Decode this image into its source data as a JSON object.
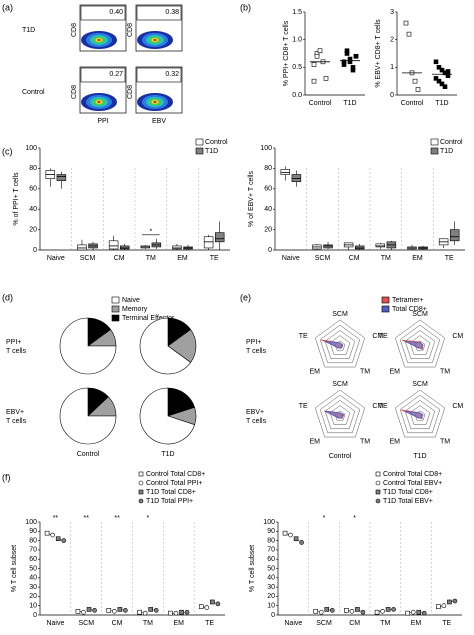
{
  "chart_data": [
    {
      "type": "flow",
      "panel": "(a)",
      "rows": [
        "T1D",
        "Control"
      ],
      "columns": [
        "PPI",
        "EBV"
      ],
      "ylabel": "CD8",
      "values": [
        [
          0.4,
          0.38
        ],
        [
          0.27,
          0.32
        ]
      ],
      "value_labels": [
        [
          "0.40",
          "0.38"
        ],
        [
          "0.27",
          "0.32"
        ]
      ]
    },
    {
      "type": "dot",
      "panel": "(b)",
      "ylabel": "% PPI+ CD8+ T cells",
      "categories": [
        "Control",
        "T1D"
      ],
      "values": [
        [
          0.55,
          0.75,
          0.8,
          0.6,
          0.3,
          0.25,
          0.7
        ],
        [
          0.6,
          0.75,
          0.65,
          0.5,
          0.7,
          0.55,
          0.8,
          0.6,
          0.45,
          0.7
        ]
      ],
      "medians": [
        0.6,
        0.62
      ],
      "ylim": [
        0,
        1.5
      ],
      "yticks": [
        {
          "value": 0,
          "label": "0.0"
        },
        0.5,
        {
          "value": 1,
          "label": "1.0"
        },
        1.5
      ]
    },
    {
      "type": "dot",
      "ylabel": "% EBV+ CD8+ T cells",
      "categories": [
        "Control",
        "T1D"
      ],
      "values": [
        [
          2.6,
          2.2,
          0.8,
          0.5,
          0.2
        ],
        [
          1.2,
          1.0,
          0.9,
          0.8,
          0.7,
          0.6,
          0.5,
          0.4,
          0.3,
          0.85
        ]
      ],
      "medians": [
        0.8,
        0.75
      ],
      "ylim": [
        0,
        3
      ],
      "yticks": [
        0,
        1,
        2,
        3
      ]
    },
    {
      "type": "box",
      "panel": "(c)",
      "ylabel": "% of PPI+ T cells",
      "categories": [
        "Naive",
        "SCM",
        "CM",
        "TM",
        "EM",
        "TE"
      ],
      "legend": "upper right",
      "series": [
        {
          "name": "Control",
          "color": "#ffffff",
          "boxes": [
            [
              62,
              70,
              74,
              78,
              80
            ],
            [
              0,
              0,
              2,
              5,
              10
            ],
            [
              0,
              1,
              4,
              9,
              14
            ],
            [
              1,
              2,
              3,
              4,
              5
            ],
            [
              0,
              1,
              2,
              4,
              6
            ],
            [
              0,
              2,
              8,
              13,
              15
            ]
          ]
        },
        {
          "name": "T1D",
          "color": "#808080",
          "boxes": [
            [
              60,
              68,
              72,
              74,
              77
            ],
            [
              0,
              2,
              4,
              6,
              8
            ],
            [
              0,
              1,
              2,
              4,
              6
            ],
            [
              1,
              3,
              5,
              7,
              11
            ],
            [
              0,
              1,
              2,
              3,
              5
            ],
            [
              0,
              8,
              11,
              17,
              28
            ]
          ]
        }
      ],
      "annotations": [
        null,
        null,
        null,
        "*",
        null,
        null
      ],
      "ylim": [
        0,
        100
      ],
      "yticks": [
        0,
        20,
        40,
        60,
        80,
        100
      ]
    },
    {
      "type": "box",
      "ylabel": "% of EBV+ T cells",
      "categories": [
        "Naive",
        "SCM",
        "CM",
        "TM",
        "EM",
        "TE"
      ],
      "legend": "upper right",
      "series": [
        {
          "name": "Control",
          "color": "#ffffff",
          "boxes": [
            [
              68,
              74,
              76,
              79,
              82
            ],
            [
              0,
              1,
              3,
              5,
              6
            ],
            [
              0,
              3,
              5,
              7,
              7
            ],
            [
              1,
              3,
              4,
              6,
              7
            ],
            [
              0,
              1,
              2,
              3,
              5
            ],
            [
              2,
              5,
              8,
              11,
              11
            ]
          ]
        },
        {
          "name": "T1D",
          "color": "#808080",
          "boxes": [
            [
              62,
              67,
              70,
              74,
              78
            ],
            [
              1,
              2,
              4,
              5,
              8
            ],
            [
              0,
              1,
              2,
              4,
              6
            ],
            [
              0,
              2,
              5,
              8,
              9
            ],
            [
              0,
              1,
              2,
              3,
              4
            ],
            [
              5,
              9,
              13,
              20,
              28
            ]
          ]
        }
      ],
      "annotations": [
        null,
        null,
        null,
        null,
        null,
        null
      ],
      "ylim": [
        0,
        100
      ],
      "yticks": [
        0,
        20,
        40,
        60,
        80,
        100
      ]
    },
    {
      "type": "pie",
      "panel": "(d)",
      "names": [
        "Naive",
        "Memory",
        "Terminal Effector"
      ],
      "colors": [
        "#ffffff",
        "#a0a0a0",
        "#000000"
      ],
      "rows": [
        [
          "PPI+",
          "T cells"
        ],
        [
          "EBV+",
          "T cells"
        ]
      ],
      "columns": [
        "Control",
        "T1D"
      ],
      "values": [
        [
          [
            75,
            10,
            15
          ],
          [
            65,
            20,
            15
          ]
        ],
        [
          [
            75,
            12,
            13
          ],
          [
            70,
            10,
            20
          ]
        ]
      ]
    },
    {
      "type": "radar",
      "panel": "(e)",
      "axes": [
        "SCM",
        "CM",
        "TM",
        "EM",
        "TE"
      ],
      "rows": [
        [
          "PPI+",
          "T cells"
        ],
        [
          "EBV+",
          "T cells"
        ]
      ],
      "columns": [
        "Control",
        "T1D"
      ],
      "rlim": [
        0,
        50
      ],
      "rticks": [
        10,
        20,
        30,
        40,
        50
      ],
      "series": [
        {
          "name": "Tetramer+",
          "color": "#e05050",
          "values": [
            [
              6,
              4,
              4,
              4,
              38
            ],
            [
              8,
              6,
              8,
              4,
              36
            ],
            [
              6,
              8,
              6,
              4,
              32
            ],
            [
              6,
              4,
              7,
              4,
              38
            ]
          ]
        },
        {
          "name": "Total CD8+",
          "color": "#5060c0",
          "values": [
            [
              6,
              6,
              5,
              5,
              30
            ],
            [
              6,
              6,
              5,
              5,
              30
            ],
            [
              6,
              6,
              5,
              5,
              30
            ],
            [
              6,
              6,
              5,
              5,
              30
            ]
          ]
        }
      ]
    },
    {
      "type": "dotline",
      "panel": "(f)",
      "ylabel": "% T cell subset",
      "categories": [
        "Naive",
        "SCM",
        "CM",
        "TM",
        "EM",
        "TE"
      ],
      "series": [
        {
          "name": "Control Total CD8+",
          "marker": "square",
          "color": "#ffffff",
          "values": [
            88,
            4,
            5,
            3,
            2,
            9
          ]
        },
        {
          "name": "Control Total PPI+",
          "marker": "circle",
          "color": "#ffffff",
          "values": [
            86,
            3,
            4,
            2,
            2,
            8
          ]
        },
        {
          "name": "T1D Total CD8+",
          "marker": "square",
          "color": "#808080",
          "values": [
            82,
            6,
            6,
            6,
            3,
            14
          ]
        },
        {
          "name": "T1D Total PPI+",
          "marker": "circle",
          "color": "#808080",
          "values": [
            80,
            5,
            5,
            5,
            3,
            12
          ]
        }
      ],
      "annotations": [
        "**",
        "**",
        "**",
        "*",
        null,
        null
      ],
      "ylim": [
        0,
        100
      ],
      "yticks": [
        0,
        10,
        20,
        30,
        40,
        50,
        60,
        70,
        80,
        90,
        100
      ]
    },
    {
      "type": "dotline",
      "ylabel": "% T cell subset",
      "categories": [
        "Naive",
        "SCM",
        "CM",
        "TM",
        "EM",
        "TE"
      ],
      "series": [
        {
          "name": "Control Total CD8+",
          "marker": "square",
          "color": "#ffffff",
          "values": [
            88,
            4,
            5,
            3,
            2,
            9
          ]
        },
        {
          "name": "Control Total EBV+",
          "marker": "circle",
          "color": "#ffffff",
          "values": [
            86,
            3,
            4,
            4,
            3,
            10
          ]
        },
        {
          "name": "T1D Total CD8+",
          "marker": "square",
          "color": "#808080",
          "values": [
            82,
            6,
            6,
            6,
            3,
            14
          ]
        },
        {
          "name": "T1D Total EBV+",
          "marker": "circle",
          "color": "#808080",
          "values": [
            78,
            5,
            3,
            6,
            2,
            15
          ]
        }
      ],
      "annotations": [
        null,
        "*",
        "*",
        null,
        null,
        null
      ],
      "ylim": [
        0,
        100
      ],
      "yticks": [
        0,
        10,
        20,
        30,
        40,
        50,
        60,
        70,
        80,
        90,
        100
      ]
    }
  ]
}
